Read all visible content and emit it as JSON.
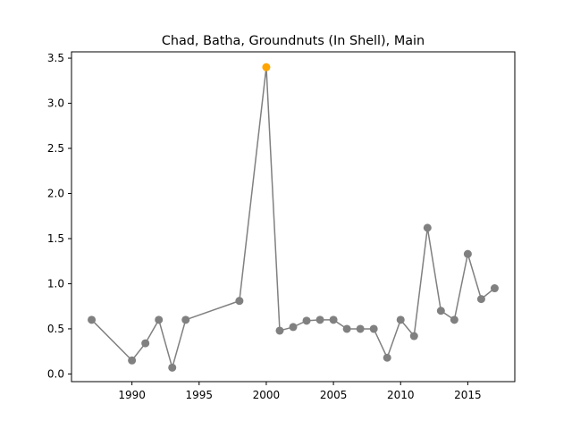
{
  "chart_data": {
    "type": "line",
    "title": "Chad, Batha, Groundnuts (In Shell), Main",
    "xlabel": "",
    "ylabel": "",
    "xlim": [
      1985.5,
      2018.5
    ],
    "ylim": [
      -0.085,
      3.57
    ],
    "x_ticks": [
      1990,
      1995,
      2000,
      2005,
      2010,
      2015
    ],
    "y_ticks": [
      0.0,
      0.5,
      1.0,
      1.5,
      2.0,
      2.5,
      3.0,
      3.5
    ],
    "x_tick_labels": [
      "1990",
      "1995",
      "2000",
      "2005",
      "2010",
      "2015"
    ],
    "y_tick_labels": [
      "0.0",
      "0.5",
      "1.0",
      "1.5",
      "2.0",
      "2.5",
      "3.0",
      "3.5"
    ],
    "grid": false,
    "colors": {
      "line": "#808080",
      "point": "#808080",
      "highlight": "#ffa500"
    },
    "highlight_x": 2000,
    "series": [
      {
        "x": [
          1987,
          1990,
          1991,
          1992,
          1993,
          1994,
          1998,
          2000,
          2001,
          2002,
          2003,
          2004,
          2005,
          2006,
          2007,
          2008,
          2009,
          2010,
          2011,
          2012,
          2013,
          2014,
          2015,
          2016,
          2017
        ],
        "values": [
          0.6,
          0.15,
          0.34,
          0.6,
          0.07,
          0.6,
          0.81,
          3.4,
          0.48,
          0.52,
          0.59,
          0.6,
          0.6,
          0.5,
          0.5,
          0.5,
          0.18,
          0.6,
          0.42,
          1.62,
          0.7,
          0.6,
          1.33,
          0.83,
          0.95
        ]
      }
    ]
  }
}
